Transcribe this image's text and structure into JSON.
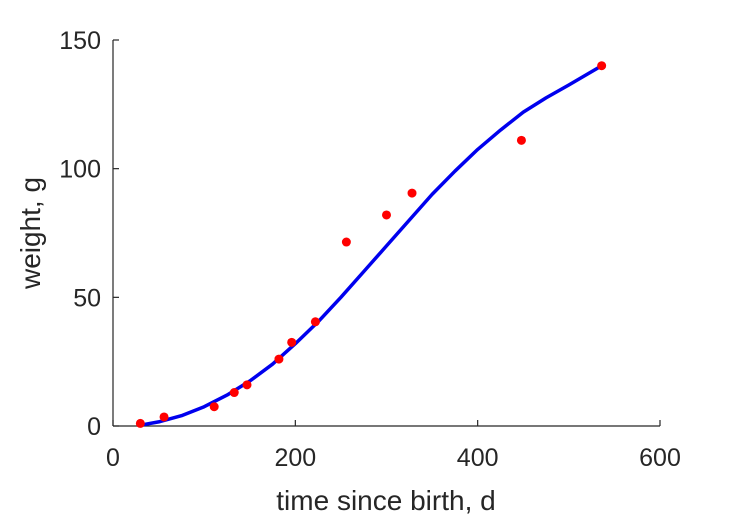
{
  "chart_data": {
    "type": "scatter",
    "xlabel": "time since birth, d",
    "ylabel": "weight, g",
    "xlim": [
      0,
      600
    ],
    "ylim": [
      0,
      150
    ],
    "xticks": [
      0,
      200,
      400,
      600
    ],
    "yticks": [
      0,
      50,
      100,
      150
    ],
    "grid": false,
    "series": [
      {
        "kind": "points",
        "color": "#ff0000",
        "x": [
          30,
          56,
          111,
          133,
          147,
          182,
          196,
          222,
          256,
          300,
          328,
          448,
          536
        ],
        "y": [
          1,
          3.5,
          7.5,
          13,
          16,
          26,
          32.5,
          40.5,
          71.5,
          82,
          90.5,
          111,
          140
        ]
      },
      {
        "kind": "line",
        "color": "#0000ee",
        "x": [
          30,
          50,
          75,
          100,
          125,
          150,
          175,
          200,
          225,
          250,
          275,
          300,
          325,
          350,
          375,
          400,
          425,
          450,
          475,
          500,
          536
        ],
        "y": [
          0.3,
          1.6,
          4,
          7.5,
          12,
          17.5,
          24,
          32,
          40.5,
          50,
          60,
          70,
          80,
          90,
          99,
          107.5,
          115,
          122,
          127.5,
          132.5,
          140
        ]
      }
    ]
  }
}
